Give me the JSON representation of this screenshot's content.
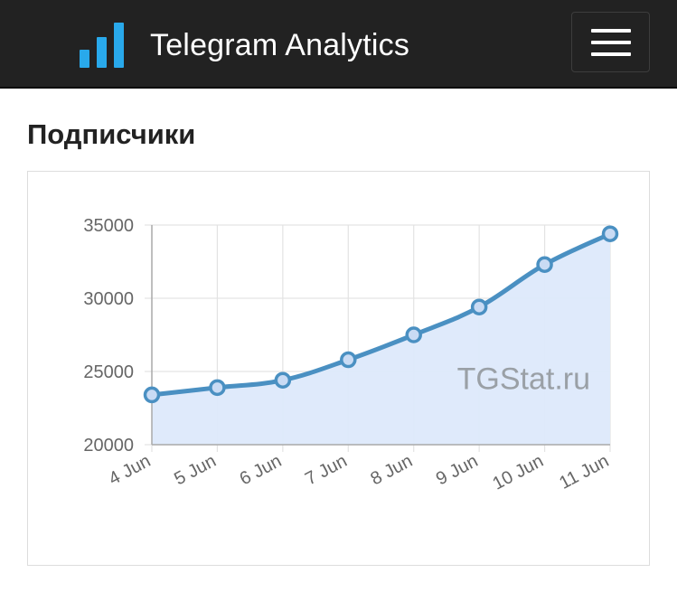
{
  "navbar": {
    "brand_name": "Telegram Analytics",
    "brand_icon": "bar-chart-icon",
    "menu_icon": "hamburger-menu-icon",
    "brand_color": "#29a9eb"
  },
  "section": {
    "title": "Подписчики"
  },
  "chart_data": {
    "type": "area",
    "title": "",
    "xlabel": "",
    "ylabel": "",
    "categories": [
      "4 Jun",
      "5 Jun",
      "6 Jun",
      "7 Jun",
      "8 Jun",
      "9 Jun",
      "10 Jun",
      "11 Jun"
    ],
    "series": [
      {
        "values": [
          23400,
          23900,
          24400,
          25800,
          27500,
          29400,
          32300,
          34400
        ]
      }
    ],
    "yticks": [
      20000,
      25000,
      30000,
      35000
    ],
    "ylim": [
      20000,
      35000
    ],
    "grid": true,
    "line_color": "#4a90c2",
    "fill_color": "#dde9fb",
    "watermark": "TGStat.ru"
  }
}
